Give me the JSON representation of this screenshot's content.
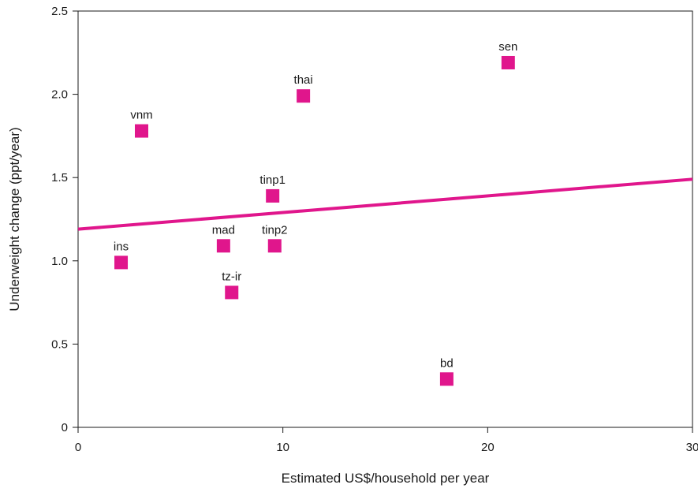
{
  "chart_data": {
    "type": "scatter",
    "xlabel": "Estimated US$/household per year",
    "ylabel": "Underweight change (ppt/year)",
    "xlim": [
      0,
      30
    ],
    "ylim": [
      0,
      2.5
    ],
    "x_ticks": [
      "0",
      "10",
      "20",
      "30"
    ],
    "x_tick_values": [
      0,
      10,
      20,
      30
    ],
    "y_ticks": [
      "0",
      "0.5",
      "1.0",
      "1.5",
      "2.0",
      "2.5"
    ],
    "y_tick_values": [
      0,
      0.5,
      1.0,
      1.5,
      2.0,
      2.5
    ],
    "grid": false,
    "marker_color": "#e0168c",
    "trendline_color": "#e0168c",
    "points": [
      {
        "label": "ins",
        "x": 2.1,
        "y": 0.99
      },
      {
        "label": "vnm",
        "x": 3.1,
        "y": 1.78
      },
      {
        "label": "mad",
        "x": 7.1,
        "y": 1.09
      },
      {
        "label": "tz-ir",
        "x": 7.5,
        "y": 0.81
      },
      {
        "label": "tinp1",
        "x": 9.5,
        "y": 1.39
      },
      {
        "label": "tinp2",
        "x": 9.6,
        "y": 1.09
      },
      {
        "label": "thai",
        "x": 11.0,
        "y": 1.99
      },
      {
        "label": "bd",
        "x": 18.0,
        "y": 0.29
      },
      {
        "label": "sen",
        "x": 21.0,
        "y": 2.19
      }
    ],
    "trendline": {
      "x": [
        0,
        30
      ],
      "y": [
        1.19,
        1.49
      ]
    }
  }
}
